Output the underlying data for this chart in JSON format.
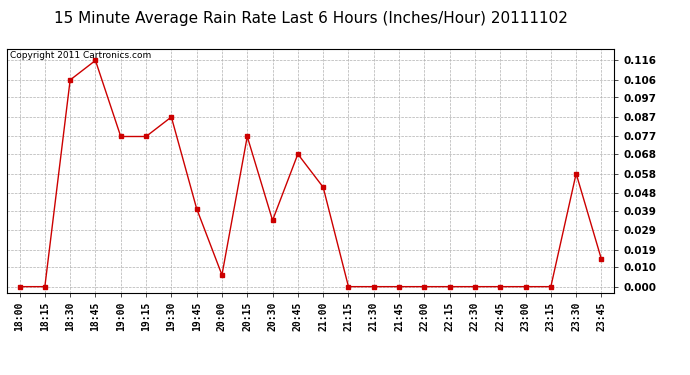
{
  "title": "15 Minute Average Rain Rate Last 6 Hours (Inches/Hour) 20111102",
  "copyright": "Copyright 2011 Cartronics.com",
  "x_labels": [
    "18:00",
    "18:15",
    "18:30",
    "18:45",
    "19:00",
    "19:15",
    "19:30",
    "19:45",
    "20:00",
    "20:15",
    "20:30",
    "20:45",
    "21:00",
    "21:15",
    "21:30",
    "21:45",
    "22:00",
    "22:15",
    "22:30",
    "22:45",
    "23:00",
    "23:15",
    "23:30",
    "23:45"
  ],
  "y_values": [
    0.0,
    0.0,
    0.106,
    0.116,
    0.077,
    0.077,
    0.087,
    0.04,
    0.006,
    0.077,
    0.034,
    0.068,
    0.051,
    0.0,
    0.0,
    0.0,
    0.0,
    0.0,
    0.0,
    0.0,
    0.0,
    0.0,
    0.058,
    0.014
  ],
  "yticks": [
    0.0,
    0.01,
    0.019,
    0.029,
    0.039,
    0.048,
    0.058,
    0.068,
    0.077,
    0.087,
    0.097,
    0.106,
    0.116
  ],
  "line_color": "#cc0000",
  "marker": "s",
  "marker_size": 2.5,
  "background_color": "#ffffff",
  "grid_color": "#b0b0b0",
  "title_fontsize": 11,
  "copyright_fontsize": 6.5,
  "tick_fontsize": 7,
  "ytick_fontsize": 7.5
}
